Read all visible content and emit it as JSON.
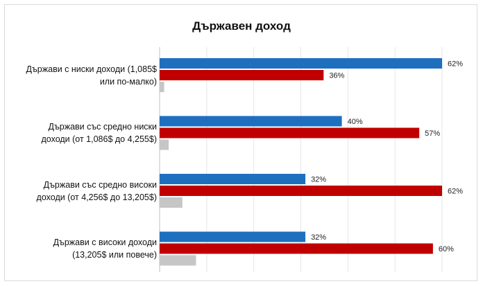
{
  "chart_data": {
    "type": "bar",
    "orientation": "horizontal",
    "title": "Държавен доход",
    "categories": [
      [
        "Държави с ниски доходи (1,085$",
        "или по-малко)"
      ],
      [
        "Държави със средно ниски",
        "доходи (от 1,086$ до 4,255$)"
      ],
      [
        "Държави със средно високи",
        "доходи (от 4,256$ до 13,205$)"
      ],
      [
        "Държави с високи доходи",
        "(13,205$ или повече)"
      ]
    ],
    "series": [
      {
        "color": "#1f6fbf",
        "values": [
          62,
          40,
          32,
          32
        ],
        "labels": [
          "62%",
          "40%",
          "32%",
          "32%"
        ]
      },
      {
        "color": "#c00000",
        "values": [
          36,
          57,
          62,
          60
        ],
        "labels": [
          "36%",
          "57%",
          "62%",
          "60%"
        ]
      },
      {
        "color": "#c6c6c6",
        "values": [
          1,
          2,
          5,
          8
        ],
        "labels": [
          "",
          "",
          "",
          ""
        ]
      }
    ],
    "xlim": [
      0,
      62
    ],
    "gridlines": true,
    "legend": "none"
  }
}
